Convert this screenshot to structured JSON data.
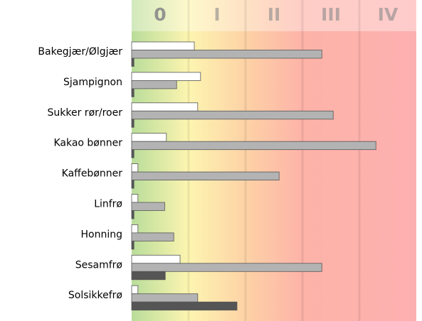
{
  "chart_data": {
    "type": "bar",
    "orientation": "horizontal",
    "categories": [
      "Bakegjær/Ølgjær",
      "Sjampignon",
      "Sukker rør/roer",
      "Kakao bønner",
      "Kaffebønner",
      "Linfrø",
      "Honning",
      "Sesamfrø",
      "Solsikkefrø"
    ],
    "series": [
      {
        "color": "#ffffff",
        "values": [
          1.1,
          1.21,
          1.16,
          0.61,
          0.11,
          0.11,
          0.11,
          0.85,
          0.11
        ]
      },
      {
        "color": "#b3b3b3",
        "values": [
          3.34,
          0.79,
          3.54,
          4.29,
          2.59,
          0.58,
          0.74,
          3.34,
          1.16
        ]
      },
      {
        "color": "#555555",
        "values": [
          0.04,
          0.04,
          0.04,
          0.04,
          0.04,
          0.04,
          0.04,
          0.59,
          1.85
        ]
      }
    ],
    "xlim": [
      0,
      5
    ],
    "xticks": [
      {
        "value": 0.5,
        "label": "0"
      },
      {
        "value": 1.5,
        "label": "I"
      },
      {
        "value": 2.5,
        "label": "II"
      },
      {
        "value": 3.5,
        "label": "III"
      },
      {
        "value": 4.5,
        "label": "IV"
      }
    ]
  }
}
